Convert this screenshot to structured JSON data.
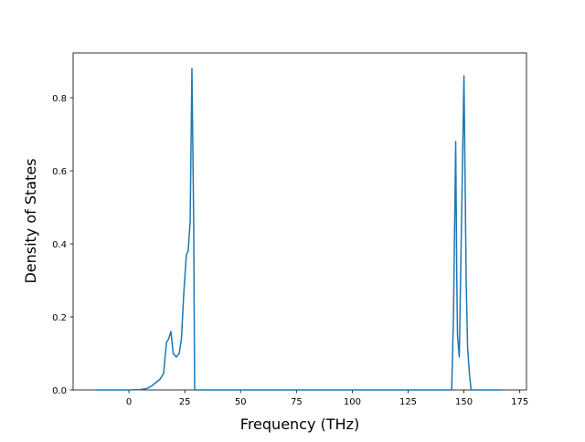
{
  "chart_data": {
    "type": "line",
    "x_label": "Frequency (THz)",
    "y_label": "Density of States",
    "x": [
      -15,
      0,
      5,
      8,
      10,
      12,
      14,
      15.5,
      16.8,
      17.8,
      18.8,
      19.8,
      21.2,
      22.5,
      23.5,
      24.5,
      25.7,
      26.5,
      27.4,
      28.2,
      29.0,
      29.4,
      30,
      144.5,
      145.3,
      146.3,
      146.8,
      147.1,
      147.9,
      150.0,
      151.0,
      151.6,
      152.5,
      153.2,
      167
    ],
    "series": [
      {
        "name": "DOS",
        "color": "#1f77b4",
        "values": [
          0,
          0,
          0.001,
          0.004,
          0.01,
          0.02,
          0.03,
          0.045,
          0.13,
          0.14,
          0.16,
          0.1,
          0.09,
          0.1,
          0.14,
          0.26,
          0.37,
          0.38,
          0.46,
          0.88,
          0.45,
          0,
          0,
          0,
          0.2,
          0.68,
          0.3,
          0.15,
          0.09,
          0.86,
          0.3,
          0.12,
          0.04,
          0,
          0
        ]
      }
    ],
    "xlim": [
      -25,
      178
    ],
    "ylim": [
      0,
      0.9225
    ],
    "xticks": [
      0,
      25,
      50,
      75,
      100,
      125,
      150,
      175
    ],
    "yticks": [
      {
        "value": 0,
        "label": "0.0"
      },
      {
        "value": 0.2,
        "label": "0.2"
      },
      {
        "value": 0.4,
        "label": "0.4"
      },
      {
        "value": 0.6,
        "label": "0.6"
      },
      {
        "value": 0.8,
        "label": "0.8"
      }
    ]
  }
}
